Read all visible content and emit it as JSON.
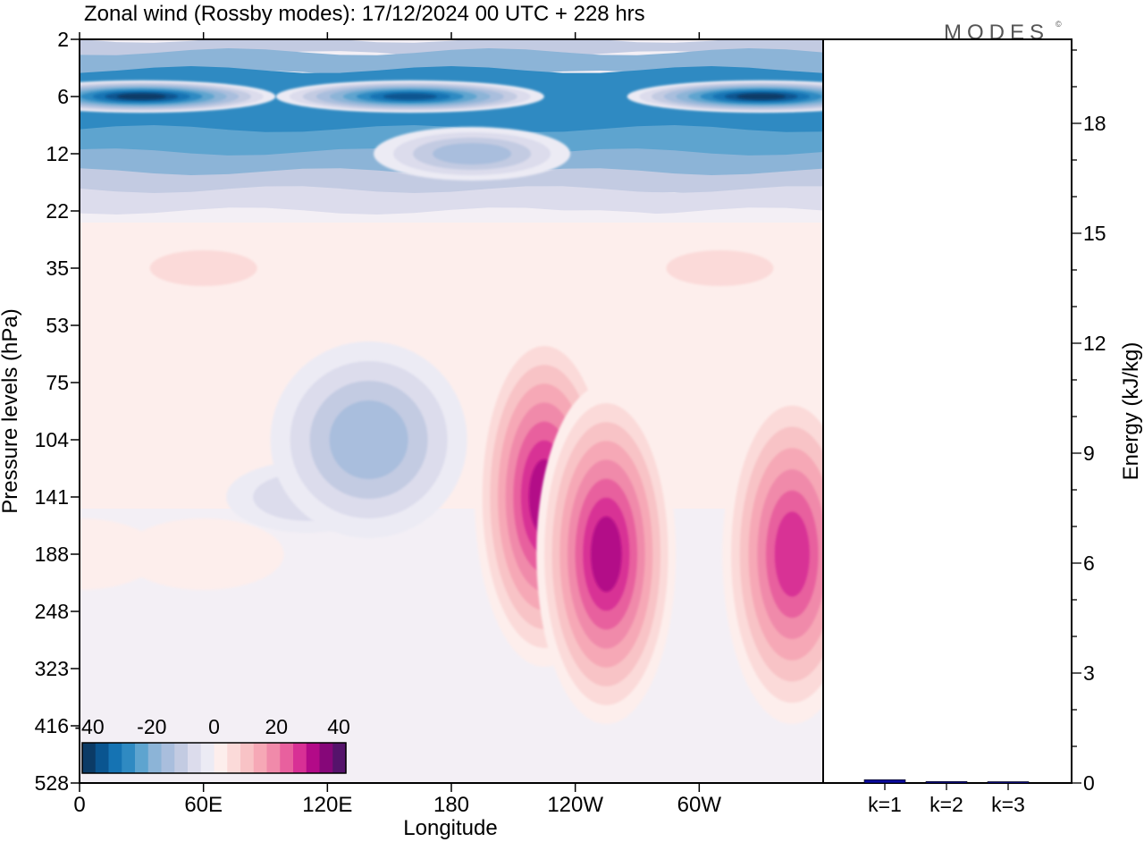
{
  "title": "Zonal wind (Rossby modes):  17/12/2024  00 UTC  + 228 hrs",
  "logo": "MODES",
  "logo_mark": "©",
  "colors": {
    "blue_scale": [
      "#0b3b66",
      "#0a5590",
      "#1573b3",
      "#2f8ac2",
      "#5ea4cf",
      "#8cb4d7",
      "#a9bedd",
      "#c3cbe2",
      "#dcdcec",
      "#ecebf4"
    ],
    "pink_scale": [
      "#fdeeec",
      "#fbdad9",
      "#f8c3c6",
      "#f6a8b6",
      "#f08aaa",
      "#e8609e",
      "#d83095",
      "#b30a88",
      "#860779",
      "#55136b"
    ],
    "energy_bar": "#0a0a9e"
  },
  "chart_data": [
    {
      "type": "heatmap",
      "title": "Zonal wind (Rossby modes):  17/12/2024  00 UTC  + 228 hrs",
      "xlabel": "Longitude",
      "ylabel": "Pressure levels (hPa)",
      "x_ticks": [
        "0",
        "60E",
        "120E",
        "180",
        "120W",
        "60W"
      ],
      "y_ticks": [
        "2",
        "6",
        "12",
        "22",
        "35",
        "53",
        "75",
        "104",
        "141",
        "188",
        "248",
        "323",
        "416",
        "528"
      ],
      "colorbar": {
        "tick_labels": [
          "-40",
          "-20",
          "0",
          "20",
          "40"
        ],
        "range": [
          -40,
          40
        ]
      },
      "features": [
        {
          "lon": 30,
          "level": "6",
          "value": -38
        },
        {
          "lon": 160,
          "level": "6",
          "value": -36
        },
        {
          "lon": 330,
          "level": "6",
          "value": -40
        },
        {
          "lon": 190,
          "level": "12",
          "value": -14
        },
        {
          "lon": 60,
          "level": "35",
          "value": 6
        },
        {
          "lon": 310,
          "level": "35",
          "value": 7
        },
        {
          "lon": 110,
          "level": "141",
          "value": -7
        },
        {
          "lon": 140,
          "level": "104",
          "value": -14
        },
        {
          "lon": 225,
          "level": "141",
          "value": 30
        },
        {
          "lon": 255,
          "level": "188",
          "value": 31
        },
        {
          "lon": 345,
          "level": "188",
          "value": 27
        },
        {
          "lon": 0,
          "level": "188",
          "value": 5
        },
        {
          "lon": 60,
          "level": "188",
          "value": 4
        }
      ]
    },
    {
      "type": "bar",
      "ylabel": "Energy (kJ/kg)",
      "categories": [
        "k=1",
        "k=2",
        "k=3"
      ],
      "values": [
        0.09,
        0.04,
        0.02
      ],
      "ylim": [
        0,
        20
      ],
      "y_ticks": [
        "0",
        "3",
        "6",
        "9",
        "12",
        "15",
        "18"
      ]
    }
  ]
}
